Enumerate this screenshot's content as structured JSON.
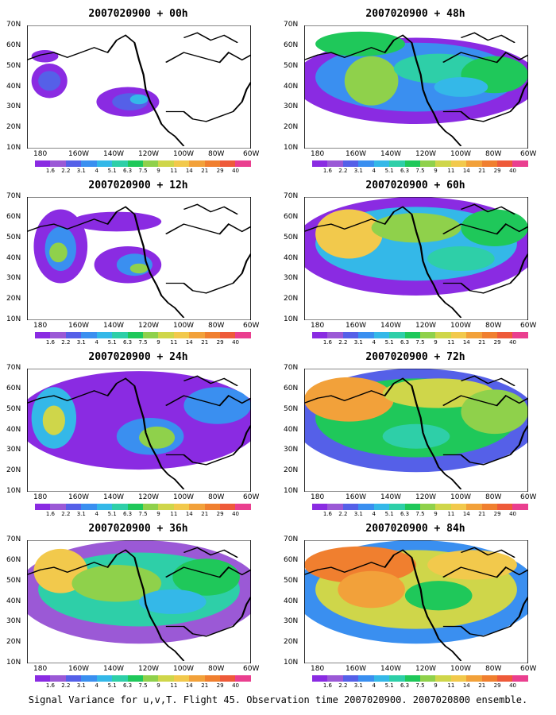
{
  "colors": {
    "land_outline": "#000000",
    "scale": [
      "#8a2be2",
      "#9b59d6",
      "#5560e8",
      "#3a8ff0",
      "#34b8e8",
      "#2ecfa8",
      "#1fc85a",
      "#8fd14b",
      "#cfd64a",
      "#f2c94c",
      "#f2a13a",
      "#f07f2f",
      "#ee5a3a",
      "#ea3f8f"
    ]
  },
  "legend_labels": [
    "1.6",
    "2.2",
    "3.1",
    "4",
    "5.1",
    "6.3",
    "7.5",
    "9",
    "11",
    "14",
    "21",
    "29",
    "40"
  ],
  "lat_labels": [
    "70N",
    "60N",
    "50N",
    "40N",
    "30N",
    "20N",
    "10N"
  ],
  "lon_labels": [
    "180",
    "160W",
    "140W",
    "120W",
    "100W",
    "80W",
    "60W"
  ],
  "panels": [
    {
      "title": "2007020900 + 00h"
    },
    {
      "title": "2007020900 + 48h"
    },
    {
      "title": "2007020900 + 12h"
    },
    {
      "title": "2007020900 + 60h"
    },
    {
      "title": "2007020900 + 24h"
    },
    {
      "title": "2007020900 + 72h"
    },
    {
      "title": "2007020900 + 36h"
    },
    {
      "title": "2007020900 + 84h"
    }
  ],
  "caption": "Signal Variance for u,v,T. Flight 45. Observation time 2007020900. 2007020800 ensemble."
}
